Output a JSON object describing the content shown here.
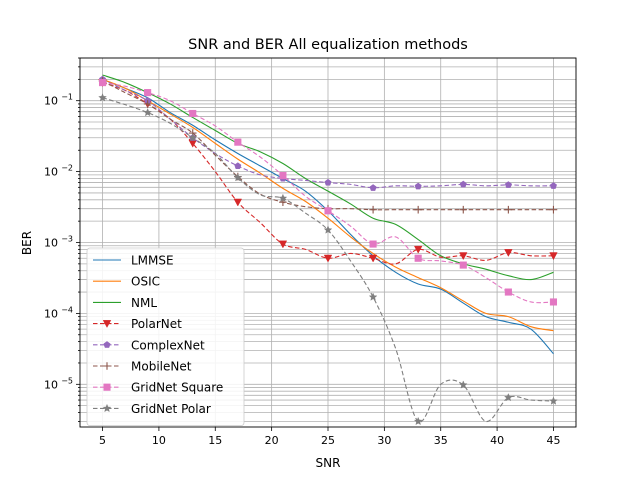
{
  "chart_data": {
    "type": "line",
    "title": "SNR and BER All equalization methods",
    "xlabel": "SNR",
    "ylabel": "BER",
    "xlim": [
      3,
      47
    ],
    "ylim": [
      2.5e-06,
      0.4
    ],
    "yscale": "log",
    "grid": true,
    "legend_position": "lower-left",
    "x_ticks": [
      5,
      10,
      15,
      20,
      25,
      30,
      35,
      40,
      45
    ],
    "x_tick_labels": [
      "5",
      "10",
      "15",
      "20",
      "25",
      "30",
      "35",
      "40",
      "45"
    ],
    "y_ticks": [
      1e-05,
      0.0001,
      0.001,
      0.01,
      0.1
    ],
    "y_tick_labels": [
      "10−5",
      "10−4",
      "10−3",
      "10−2",
      "10−1"
    ],
    "series": [
      {
        "name": "LMMSE",
        "color": "#1f77b4",
        "style": "solid",
        "marker": "none",
        "x": [
          5,
          7,
          9,
          11,
          13,
          15,
          17,
          19,
          21,
          23,
          25,
          27,
          29,
          31,
          33,
          35,
          37,
          39,
          41,
          43,
          45
        ],
        "y": [
          0.2,
          0.15,
          0.11,
          0.068,
          0.045,
          0.028,
          0.018,
          0.012,
          0.008,
          0.0053,
          0.0028,
          0.0013,
          0.00065,
          0.00038,
          0.00026,
          0.00022,
          0.00014,
          9e-05,
          7.5e-05,
          6e-05,
          2.7e-05
        ]
      },
      {
        "name": "OSIC",
        "color": "#ff7f0e",
        "style": "solid",
        "marker": "none",
        "x": [
          5,
          7,
          9,
          11,
          13,
          15,
          17,
          19,
          21,
          23,
          25,
          27,
          29,
          31,
          33,
          35,
          37,
          39,
          41,
          43,
          45
        ],
        "y": [
          0.2,
          0.15,
          0.1,
          0.065,
          0.042,
          0.025,
          0.015,
          0.0095,
          0.0058,
          0.0038,
          0.0022,
          0.0012,
          0.0007,
          0.00045,
          0.00032,
          0.00023,
          0.00015,
          0.0001,
          9e-05,
          6.5e-05,
          5.7e-05
        ]
      },
      {
        "name": "NML",
        "color": "#2ca02c",
        "style": "solid",
        "marker": "none",
        "x": [
          5,
          7,
          9,
          11,
          13,
          15,
          17,
          19,
          21,
          23,
          25,
          27,
          29,
          31,
          33,
          35,
          37,
          39,
          41,
          43,
          45
        ],
        "y": [
          0.23,
          0.18,
          0.13,
          0.09,
          0.058,
          0.038,
          0.025,
          0.019,
          0.013,
          0.008,
          0.0053,
          0.0035,
          0.0022,
          0.0018,
          0.0011,
          0.00065,
          0.0005,
          0.00042,
          0.00034,
          0.0003,
          0.00038
        ]
      },
      {
        "name": "PolarNet",
        "color": "#d62728",
        "style": "dashed",
        "marker": "triangle-down",
        "x": [
          5,
          7,
          9,
          11,
          13,
          15,
          17,
          19,
          21,
          23,
          25,
          27,
          29,
          31,
          33,
          35,
          37,
          39,
          41,
          43,
          45
        ],
        "y": [
          0.18,
          0.14,
          0.09,
          0.055,
          0.025,
          0.01,
          0.0037,
          0.0019,
          0.00095,
          0.0008,
          0.0006,
          0.0007,
          0.0006,
          0.0005,
          0.0008,
          0.00062,
          0.00065,
          0.00056,
          0.00072,
          0.00065,
          0.00065
        ]
      },
      {
        "name": "ComplexNet",
        "color": "#9467bd",
        "style": "dashed",
        "marker": "pentagon",
        "x": [
          5,
          7,
          9,
          11,
          13,
          15,
          17,
          19,
          21,
          23,
          25,
          27,
          29,
          31,
          33,
          35,
          37,
          39,
          41,
          43,
          45
        ],
        "y": [
          0.2,
          0.14,
          0.1,
          0.055,
          0.03,
          0.018,
          0.012,
          0.009,
          0.008,
          0.0075,
          0.007,
          0.0066,
          0.0059,
          0.0063,
          0.0062,
          0.0063,
          0.0066,
          0.0063,
          0.0065,
          0.0063,
          0.0063
        ]
      },
      {
        "name": "MobileNet",
        "color": "#8c564b",
        "style": "dashed",
        "marker": "plus",
        "x": [
          5,
          7,
          9,
          11,
          13,
          15,
          17,
          19,
          21,
          23,
          25,
          27,
          29,
          31,
          33,
          35,
          37,
          39,
          41,
          43,
          45
        ],
        "y": [
          0.19,
          0.13,
          0.09,
          0.055,
          0.035,
          0.017,
          0.0085,
          0.0048,
          0.0037,
          0.0032,
          0.003,
          0.003,
          0.0029,
          0.0029,
          0.0029,
          0.0029,
          0.0029,
          0.0029,
          0.0029,
          0.0029,
          0.0029
        ]
      },
      {
        "name": "GridNet Square",
        "color": "#e377c2",
        "style": "dashed",
        "marker": "square",
        "x": [
          5,
          7,
          9,
          11,
          13,
          15,
          17,
          19,
          21,
          23,
          25,
          27,
          29,
          31,
          33,
          35,
          37,
          39,
          41,
          43,
          45
        ],
        "y": [
          0.18,
          0.16,
          0.13,
          0.1,
          0.066,
          0.044,
          0.026,
          0.016,
          0.0088,
          0.0045,
          0.0028,
          0.0017,
          0.00095,
          0.0012,
          0.0006,
          0.00055,
          0.00048,
          0.00032,
          0.0002,
          0.000145,
          0.000145
        ]
      },
      {
        "name": "GridNet Polar",
        "color": "#7f7f7f",
        "style": "dashed",
        "marker": "star",
        "x": [
          5,
          7,
          9,
          11,
          13,
          15,
          17,
          19,
          21,
          23,
          25,
          27,
          29,
          31,
          33,
          35,
          37,
          39,
          41,
          43,
          45
        ],
        "y": [
          0.11,
          0.088,
          0.068,
          0.048,
          0.03,
          0.018,
          0.0082,
          0.0047,
          0.0042,
          0.0026,
          0.0015,
          0.00055,
          0.00017,
          3.2e-05,
          3e-06,
          1e-05,
          9.8e-06,
          3e-06,
          6.5e-06,
          6e-06,
          5.8e-06
        ]
      }
    ]
  }
}
